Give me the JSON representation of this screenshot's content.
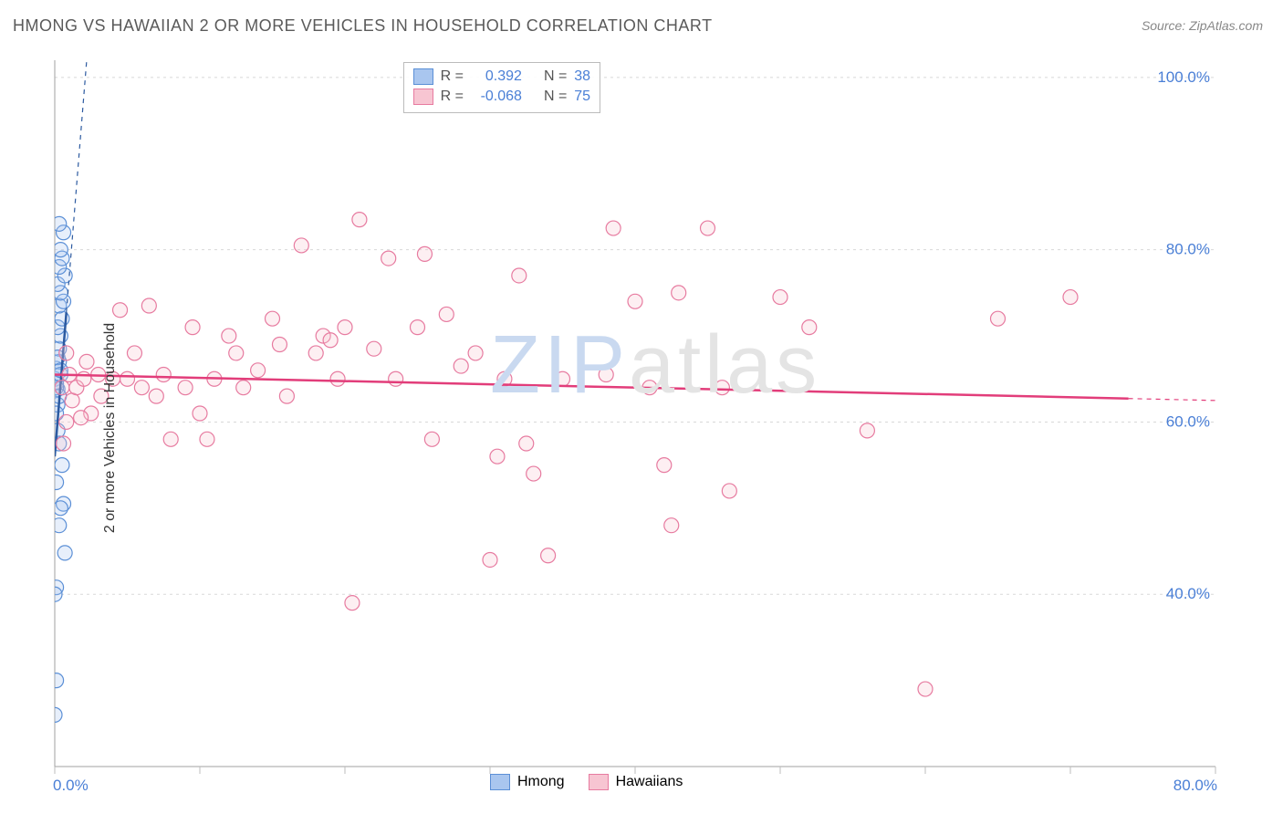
{
  "title": "HMONG VS HAWAIIAN 2 OR MORE VEHICLES IN HOUSEHOLD CORRELATION CHART",
  "source": "Source: ZipAtlas.com",
  "ylabel": "2 or more Vehicles in Household",
  "watermark": {
    "text": "ZIPatlas",
    "zip_color": "#c9d9f0",
    "atlas_color": "#e4e4e4"
  },
  "chart": {
    "type": "scatter",
    "background_color": "#ffffff",
    "grid_color": "#d8d8d8",
    "axis_color": "#a0a0a0",
    "tick_color": "#bcbcbc",
    "label_color": "#4a7fd6",
    "label_fontsize": 17,
    "xlim": [
      0,
      80
    ],
    "ylim": [
      20,
      102
    ],
    "x_ticks": [
      0,
      10,
      20,
      30,
      40,
      50,
      60,
      70,
      80
    ],
    "x_tick_labels": {
      "0": "0.0%",
      "80": "80.0%"
    },
    "y_gridlines": [
      40,
      60,
      80,
      100
    ],
    "y_tick_labels": {
      "40": "40.0%",
      "60": "60.0%",
      "80": "80.0%",
      "100": "100.0%"
    },
    "marker_radius": 8,
    "series": [
      {
        "name": "Hmong",
        "color_fill": "#a9c6ef",
        "color_stroke": "#5b8fd6",
        "R": "0.392",
        "N": "38",
        "points": [
          [
            0.0,
            65.0
          ],
          [
            0.1,
            64.5
          ],
          [
            0.2,
            63.8
          ],
          [
            0.1,
            66.2
          ],
          [
            0.3,
            67.0
          ],
          [
            0.4,
            65.5
          ],
          [
            0.2,
            62.0
          ],
          [
            0.1,
            61.0
          ],
          [
            0.2,
            59.0
          ],
          [
            0.3,
            57.5
          ],
          [
            0.5,
            55.0
          ],
          [
            0.1,
            53.0
          ],
          [
            0.6,
            50.5
          ],
          [
            0.4,
            50.0
          ],
          [
            0.3,
            48.0
          ],
          [
            0.7,
            44.8
          ],
          [
            0.1,
            40.8
          ],
          [
            0.0,
            40.0
          ],
          [
            0.1,
            30.0
          ],
          [
            0.0,
            26.0
          ],
          [
            0.3,
            68.5
          ],
          [
            0.4,
            70.0
          ],
          [
            0.2,
            71.0
          ],
          [
            0.5,
            72.0
          ],
          [
            0.3,
            73.5
          ],
          [
            0.6,
            74.0
          ],
          [
            0.4,
            75.0
          ],
          [
            0.2,
            76.0
          ],
          [
            0.7,
            77.0
          ],
          [
            0.3,
            78.0
          ],
          [
            0.5,
            79.0
          ],
          [
            0.4,
            80.0
          ],
          [
            0.6,
            82.0
          ],
          [
            0.3,
            83.0
          ],
          [
            0.2,
            67.5
          ],
          [
            0.4,
            66.0
          ],
          [
            0.1,
            64.0
          ],
          [
            0.3,
            63.0
          ]
        ],
        "trend": {
          "x1": 0,
          "y1": 56,
          "x2": 2.2,
          "y2": 102,
          "solid_extent": 0.8,
          "color": "#2c5aa0"
        }
      },
      {
        "name": "Hawaiians",
        "color_fill": "#f7c5d2",
        "color_stroke": "#e77ba0",
        "R": "-0.068",
        "N": "75",
        "points": [
          [
            0.5,
            64.0
          ],
          [
            0.8,
            60.0
          ],
          [
            0.6,
            57.5
          ],
          [
            1.0,
            65.5
          ],
          [
            1.2,
            62.5
          ],
          [
            1.5,
            64.0
          ],
          [
            2.0,
            65.0
          ],
          [
            2.2,
            67.0
          ],
          [
            2.5,
            61.0
          ],
          [
            3.0,
            65.5
          ],
          [
            3.2,
            63.0
          ],
          [
            4.0,
            65.0
          ],
          [
            4.5,
            73.0
          ],
          [
            5.0,
            65.0
          ],
          [
            5.5,
            68.0
          ],
          [
            6.0,
            64.0
          ],
          [
            7.0,
            63.0
          ],
          [
            7.5,
            65.5
          ],
          [
            8.0,
            58.0
          ],
          [
            9.0,
            64.0
          ],
          [
            9.5,
            71.0
          ],
          [
            10.0,
            61.0
          ],
          [
            10.5,
            58.0
          ],
          [
            11.0,
            65.0
          ],
          [
            12.0,
            70.0
          ],
          [
            12.5,
            68.0
          ],
          [
            13.0,
            64.0
          ],
          [
            14.0,
            66.0
          ],
          [
            15.0,
            72.0
          ],
          [
            15.5,
            69.0
          ],
          [
            16.0,
            63.0
          ],
          [
            17.0,
            80.5
          ],
          [
            18.0,
            68.0
          ],
          [
            18.5,
            70.0
          ],
          [
            19.0,
            69.5
          ],
          [
            19.5,
            65.0
          ],
          [
            20.0,
            71.0
          ],
          [
            20.5,
            39.0
          ],
          [
            21.0,
            83.5
          ],
          [
            22.0,
            68.5
          ],
          [
            23.0,
            79.0
          ],
          [
            23.5,
            65.0
          ],
          [
            25.0,
            71.0
          ],
          [
            25.5,
            79.5
          ],
          [
            26.0,
            58.0
          ],
          [
            27.0,
            72.5
          ],
          [
            28.0,
            66.5
          ],
          [
            29.0,
            68.0
          ],
          [
            30.0,
            44.0
          ],
          [
            30.5,
            56.0
          ],
          [
            31.0,
            65.0
          ],
          [
            32.0,
            77.0
          ],
          [
            32.5,
            57.5
          ],
          [
            33.0,
            54.0
          ],
          [
            34.0,
            44.5
          ],
          [
            35.0,
            65.0
          ],
          [
            38.0,
            65.5
          ],
          [
            38.5,
            82.5
          ],
          [
            40.0,
            74.0
          ],
          [
            41.0,
            64.0
          ],
          [
            42.0,
            55.0
          ],
          [
            42.5,
            48.0
          ],
          [
            43.0,
            75.0
          ],
          [
            45.0,
            82.5
          ],
          [
            46.0,
            64.0
          ],
          [
            46.5,
            52.0
          ],
          [
            50.0,
            74.5
          ],
          [
            52.0,
            71.0
          ],
          [
            56.0,
            59.0
          ],
          [
            60.0,
            29.0
          ],
          [
            65.0,
            72.0
          ],
          [
            70.0,
            74.5
          ],
          [
            0.8,
            68.0
          ],
          [
            1.8,
            60.5
          ],
          [
            6.5,
            73.5
          ]
        ],
        "trend": {
          "x1": 0,
          "y1": 65.5,
          "x2": 80,
          "y2": 62.5,
          "solid_extent": 74,
          "color": "#e23d7a"
        }
      }
    ]
  },
  "legend_top": {
    "rows": [
      {
        "swatch_fill": "#a9c6ef",
        "swatch_stroke": "#5b8fd6",
        "r_label": "R =",
        "r_value": "0.392",
        "n_label": "N =",
        "n_value": "38"
      },
      {
        "swatch_fill": "#f7c5d2",
        "swatch_stroke": "#e77ba0",
        "r_label": "R =",
        "r_value": "-0.068",
        "n_label": "N =",
        "n_value": "75"
      }
    ]
  },
  "legend_bottom": {
    "items": [
      {
        "swatch_fill": "#a9c6ef",
        "swatch_stroke": "#5b8fd6",
        "label": "Hmong"
      },
      {
        "swatch_fill": "#f7c5d2",
        "swatch_stroke": "#e77ba0",
        "label": "Hawaiians"
      }
    ]
  }
}
